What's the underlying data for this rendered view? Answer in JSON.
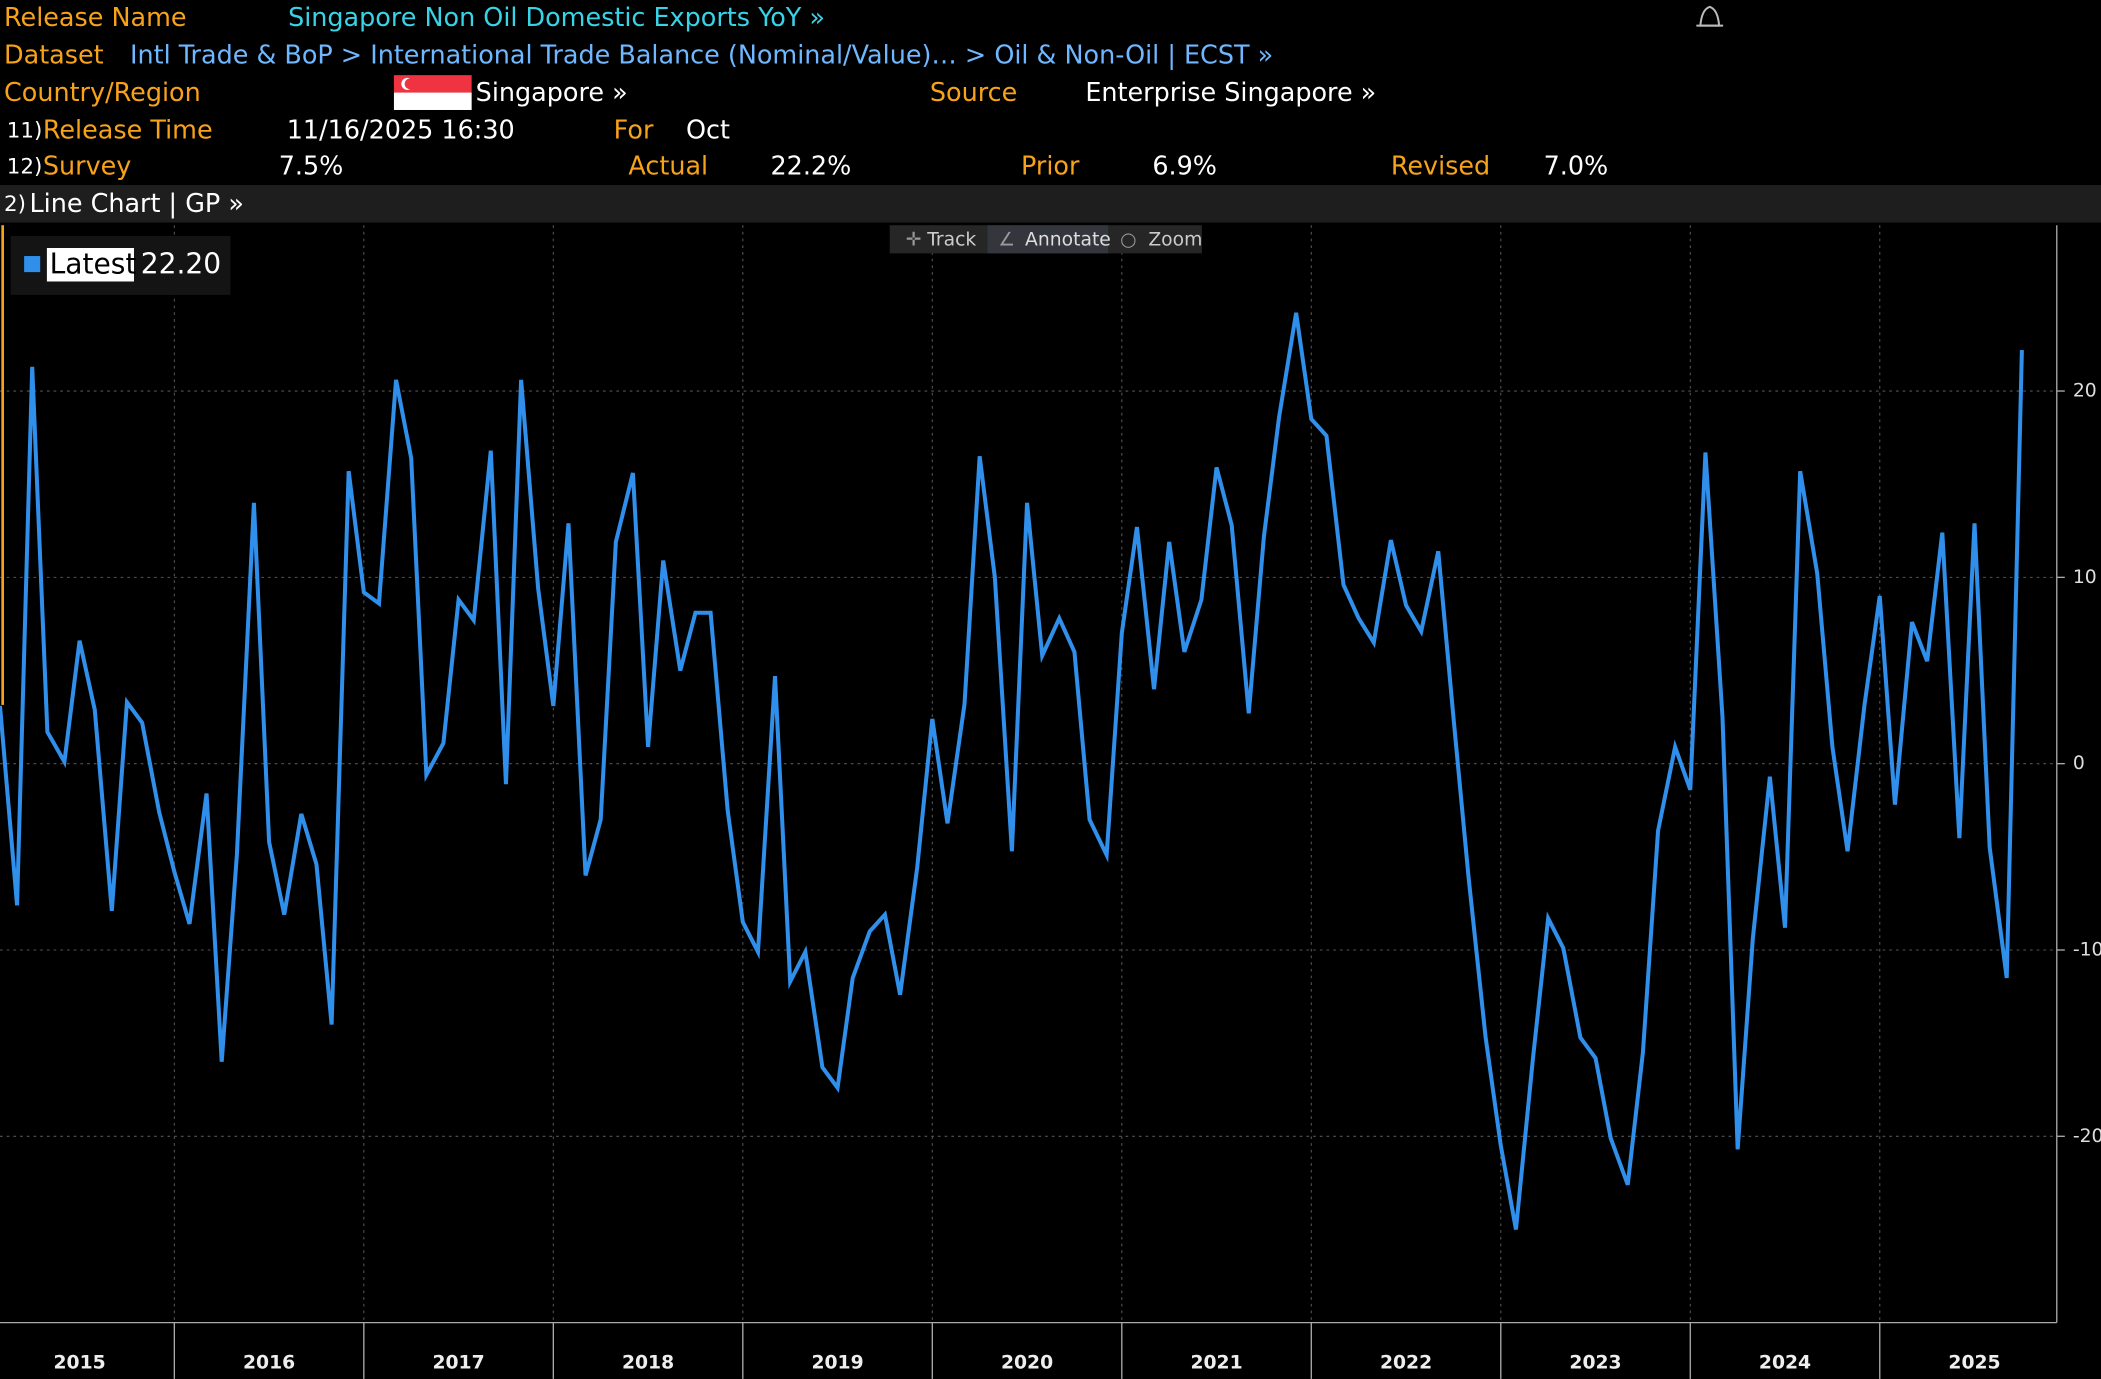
{
  "header": {
    "release_name_label": "Release Name",
    "release_name": "Singapore Non Oil Domestic Exports YoY »",
    "dataset_label": "Dataset",
    "dataset": "Intl Trade & BoP > International Trade Balance (Nominal/Value)…  > Oil & Non-Oil | ECST »",
    "country_label": "Country/Region",
    "country": "Singapore »",
    "source_label": "Source",
    "source": "Enterprise Singapore »",
    "row11": {
      "number": "11)",
      "label": "Release Time",
      "value": "11/16/2025 16:30",
      "for_label": "For",
      "for_value": "Oct"
    },
    "row12": {
      "number": "12)",
      "survey_label": "Survey",
      "survey": "7.5%",
      "actual_label": "Actual",
      "actual": "22.2%",
      "prior_label": "Prior",
      "prior": "6.9%",
      "revised_label": "Revised",
      "revised": "7.0%"
    },
    "chart_menu_number": "2)",
    "chart_menu": "Line Chart | GP »"
  },
  "toolbar": {
    "track": "Track",
    "annotate": "Annotate",
    "zoom": "Zoom"
  },
  "chart_data": {
    "type": "line",
    "legend_label": "22.20",
    "x": [
      2015.08,
      2015.17,
      2015.25,
      2015.33,
      2015.42,
      2015.5,
      2015.58,
      2015.67,
      2015.75,
      2015.83,
      2015.92,
      2016.0,
      2016.08,
      2016.17,
      2016.25,
      2016.33,
      2016.42,
      2016.5,
      2016.58,
      2016.67,
      2016.75,
      2016.83,
      2016.92,
      2017.0,
      2017.08,
      2017.17,
      2017.25,
      2017.33,
      2017.42,
      2017.5,
      2017.58,
      2017.67,
      2017.75,
      2017.83,
      2017.92,
      2018.0,
      2018.08,
      2018.17,
      2018.25,
      2018.33,
      2018.42,
      2018.5,
      2018.58,
      2018.67,
      2018.75,
      2018.83,
      2018.92,
      2019.0,
      2019.08,
      2019.17,
      2019.25,
      2019.33,
      2019.42,
      2019.5,
      2019.58,
      2019.67,
      2019.75,
      2019.83,
      2019.92,
      2020.0,
      2020.08,
      2020.17,
      2020.25,
      2020.33,
      2020.42,
      2020.5,
      2020.58,
      2020.67,
      2020.75,
      2020.83,
      2020.92,
      2021.0,
      2021.08,
      2021.17,
      2021.25,
      2021.33,
      2021.42,
      2021.5,
      2021.58,
      2021.67,
      2021.75,
      2021.83,
      2021.92,
      2022.0,
      2022.08,
      2022.17,
      2022.25,
      2022.33,
      2022.42,
      2022.5,
      2022.58,
      2022.67,
      2022.75,
      2022.83,
      2022.92,
      2023.0,
      2023.08,
      2023.17,
      2023.25,
      2023.33,
      2023.42,
      2023.5,
      2023.58,
      2023.67,
      2023.75,
      2023.83,
      2023.92,
      2024.0,
      2024.08,
      2024.17,
      2024.25,
      2024.33,
      2024.42,
      2024.5,
      2024.58,
      2024.67,
      2024.75,
      2024.83,
      2024.92,
      2025.0,
      2025.08,
      2025.17,
      2025.25,
      2025.33,
      2025.42,
      2025.5,
      2025.58,
      2025.67,
      2025.75
    ],
    "series": [
      {
        "name": "Latest",
        "color": "#2f8fea",
        "values": [
          3.1,
          -7.6,
          21.3,
          1.7,
          0.1,
          6.6,
          2.9,
          -7.9,
          3.3,
          2.2,
          -2.6,
          -5.8,
          -8.6,
          -1.6,
          -16.0,
          -4.9,
          14.0,
          -4.2,
          -8.1,
          -2.7,
          -5.4,
          -14.0,
          15.7,
          9.2,
          8.6,
          20.6,
          16.4,
          -0.6,
          1.1,
          8.8,
          7.7,
          16.8,
          -1.1,
          20.6,
          9.4,
          3.1,
          12.9,
          -6.0,
          -3.0,
          11.9,
          15.6,
          0.9,
          10.9,
          5.0,
          8.1,
          8.1,
          -2.5,
          -8.5,
          -10.1,
          4.7,
          -11.7,
          -10.1,
          -16.3,
          -17.4,
          -11.5,
          -9.0,
          -8.1,
          -12.4,
          -5.6,
          2.4,
          -3.2,
          3.2,
          16.5,
          10.0,
          -4.7,
          14.0,
          5.8,
          7.8,
          6.0,
          -3.0,
          -4.9,
          7.0,
          12.7,
          4.0,
          11.9,
          6.0,
          8.8,
          15.9,
          12.8,
          2.7,
          12.2,
          18.6,
          24.2,
          18.5,
          17.6,
          9.6,
          7.8,
          6.5,
          12.0,
          8.5,
          7.1,
          11.4,
          2.5,
          -6.1,
          -14.7,
          -20.5,
          -25.0,
          -15.8,
          -8.3,
          -9.9,
          -14.7,
          -15.8,
          -20.1,
          -22.6,
          -15.5,
          -3.6,
          0.9,
          -1.4,
          16.7,
          2.5,
          -20.7,
          -9.4,
          -0.7,
          -8.8,
          15.7,
          10.2,
          0.9,
          -4.7,
          3.2,
          9.0,
          -2.2,
          7.6,
          5.5,
          12.4,
          -4.0,
          12.9,
          -4.5,
          -11.5,
          22.2
        ]
      }
    ],
    "xlim": [
      2015.08,
      2025.92
    ],
    "xticks": [
      {
        "value": 2015.5,
        "label": "2015"
      },
      {
        "value": 2016.5,
        "label": "2016"
      },
      {
        "value": 2017.5,
        "label": "2017"
      },
      {
        "value": 2018.5,
        "label": "2018"
      },
      {
        "value": 2019.5,
        "label": "2019"
      },
      {
        "value": 2020.5,
        "label": "2020"
      },
      {
        "value": 2021.5,
        "label": "2021"
      },
      {
        "value": 2022.5,
        "label": "2022"
      },
      {
        "value": 2023.5,
        "label": "2023"
      },
      {
        "value": 2024.5,
        "label": "2024"
      },
      {
        "value": 2025.5,
        "label": "2025"
      }
    ],
    "ylim": [
      -30,
      28.9
    ],
    "yticks": [
      -20,
      -10,
      0,
      10,
      20
    ],
    "grid": true
  }
}
